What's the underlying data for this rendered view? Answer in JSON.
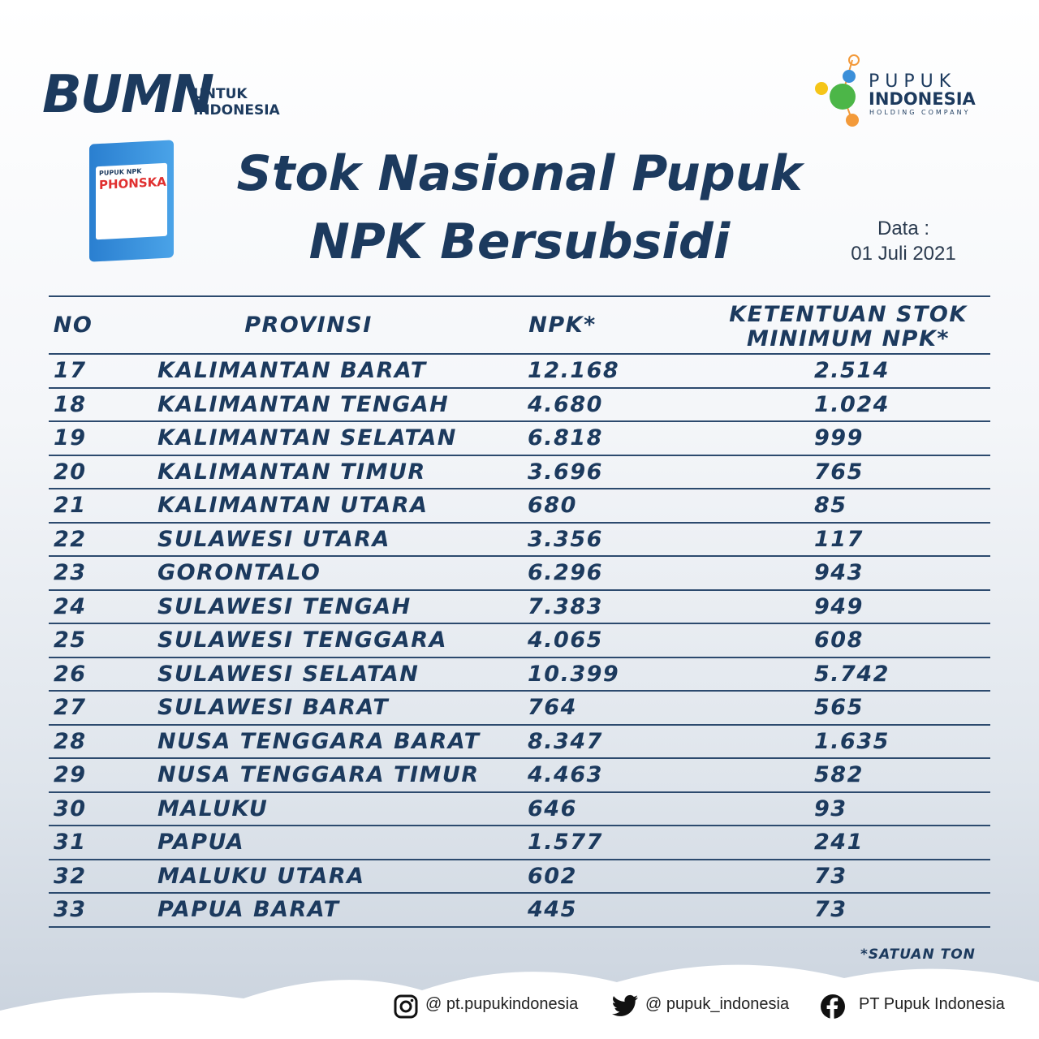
{
  "header": {
    "bumn_logo": "BUMN",
    "bumn_tagline": [
      "UNTUK",
      "INDONESIA"
    ],
    "pupuk_logo": {
      "name": "PUPUK",
      "name2": "INDONESIA",
      "sub": "HOLDING COMPANY"
    },
    "bag": {
      "line1": "PUPUK NPK",
      "line2": "PHONSKA"
    },
    "title": [
      "Stok Nasional Pupuk",
      "NPK Bersubsidi"
    ],
    "date_label": "Data :",
    "date": "01 Juli 2021"
  },
  "table": {
    "columns": [
      "NO",
      "PROVINSI",
      "NPK*",
      "KETENTUAN STOK MINIMUM NPK*"
    ],
    "rows": [
      [
        "17",
        "KALIMANTAN BARAT",
        "12.168",
        "2.514"
      ],
      [
        "18",
        "KALIMANTAN TENGAH",
        "4.680",
        "1.024"
      ],
      [
        "19",
        "KALIMANTAN SELATAN",
        "6.818",
        "999"
      ],
      [
        "20",
        "KALIMANTAN TIMUR",
        "3.696",
        "765"
      ],
      [
        "21",
        "KALIMANTAN UTARA",
        "680",
        "85"
      ],
      [
        "22",
        "SULAWESI UTARA",
        "3.356",
        "117"
      ],
      [
        "23",
        "GORONTALO",
        "6.296",
        "943"
      ],
      [
        "24",
        "SULAWESI TENGAH",
        "7.383",
        "949"
      ],
      [
        "25",
        "SULAWESI TENGGARA",
        "4.065",
        "608"
      ],
      [
        "26",
        "SULAWESI SELATAN",
        "10.399",
        "5.742"
      ],
      [
        "27",
        "SULAWESI BARAT",
        "764",
        "565"
      ],
      [
        "28",
        "NUSA TENGGARA BARAT",
        "8.347",
        "1.635"
      ],
      [
        "29",
        "NUSA TENGGARA TIMUR",
        "4.463",
        "582"
      ],
      [
        "30",
        "MALUKU",
        "646",
        "93"
      ],
      [
        "31",
        "PAPUA",
        "1.577",
        "241"
      ],
      [
        "32",
        "MALUKU UTARA",
        "602",
        "73"
      ],
      [
        "33",
        "PAPUA BARAT",
        "445",
        "73"
      ]
    ]
  },
  "footnote": "*SATUAN TON",
  "socials": [
    "@ pt.pupukindonesia",
    "@ pupuk_indonesia",
    "PT Pupuk Indonesia"
  ]
}
